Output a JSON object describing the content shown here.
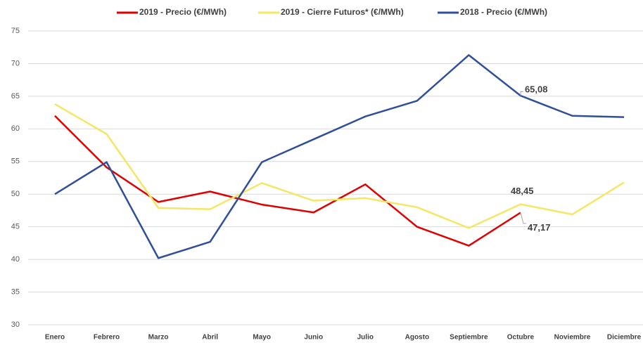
{
  "chart_data": {
    "type": "line",
    "categories": [
      "Enero",
      "Febrero",
      "Marzo",
      "Abril",
      "Mayo",
      "Junio",
      "Julio",
      "Agosto",
      "Septiembre",
      "Octubre",
      "Noviembre",
      "Diciembre"
    ],
    "series": [
      {
        "name": "2019 - Precio (€/MWh)",
        "color": "#e00000",
        "values": [
          62,
          54.1,
          48.8,
          50.4,
          48.4,
          47.2,
          51.5,
          45,
          42.1,
          47.17,
          null,
          null
        ],
        "value_labels": [
          null,
          null,
          null,
          null,
          null,
          null,
          null,
          null,
          null,
          "47,17",
          null,
          null
        ]
      },
      {
        "name": "2019 - Cierre Futuros*  (€/MWh)",
        "color": "#f5e663",
        "values": [
          63.8,
          59.2,
          47.9,
          47.7,
          51.7,
          49,
          49.4,
          48,
          44.8,
          48.45,
          46.9,
          51.8
        ],
        "value_labels": [
          null,
          null,
          null,
          null,
          null,
          null,
          null,
          null,
          null,
          "48,45",
          null,
          null
        ]
      },
      {
        "name": "2018 - Precio (€/MWh)",
        "color": "#2f4f9b",
        "values": [
          50,
          54.9,
          40.2,
          42.7,
          54.9,
          58.4,
          61.9,
          64.3,
          71.3,
          65.08,
          62,
          61.8
        ],
        "value_labels": [
          null,
          null,
          null,
          null,
          null,
          null,
          null,
          null,
          null,
          "65,08",
          null,
          null
        ]
      }
    ],
    "ylim": [
      30,
      75
    ],
    "yticks": [
      30,
      35,
      40,
      45,
      50,
      55,
      60,
      65,
      70,
      75
    ],
    "grid": true,
    "legend": "top"
  }
}
